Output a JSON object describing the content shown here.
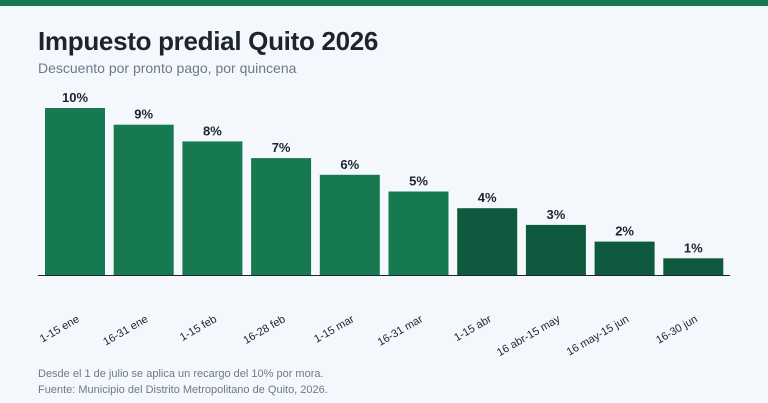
{
  "chart_data": {
    "type": "bar",
    "title": "Impuesto predial Quito 2026",
    "subtitle": "Descuento por pronto pago, por quincena",
    "categories": [
      "1-15 ene",
      "16-31 ene",
      "1-15 feb",
      "16-28 feb",
      "1-15 mar",
      "16-31 mar",
      "1-15 abr",
      "16 abr-15 may",
      "16 may-15 jun",
      "16-30 jun"
    ],
    "values": [
      10,
      9,
      8,
      7,
      6,
      5,
      4,
      3,
      2,
      1
    ],
    "value_labels": [
      "10%",
      "9%",
      "8%",
      "7%",
      "6%",
      "5%",
      "4%",
      "3%",
      "2%",
      "1%"
    ],
    "ylim": [
      0,
      10
    ],
    "grid": false,
    "legend": "none",
    "colors": {
      "primary": "#17794f",
      "secondary": "#0f5a3e"
    },
    "bar_colors": [
      "#17794f",
      "#17794f",
      "#17794f",
      "#17794f",
      "#17794f",
      "#17794f",
      "#0f5a3e",
      "#0f5a3e",
      "#0f5a3e",
      "#0f5a3e"
    ]
  },
  "footnotes": {
    "note": "Desde el 1 de julio se aplica un recargo del 10% por mora.",
    "source": "Fuente: Municipio del Distrito Metropolitano de Quito, 2026."
  }
}
